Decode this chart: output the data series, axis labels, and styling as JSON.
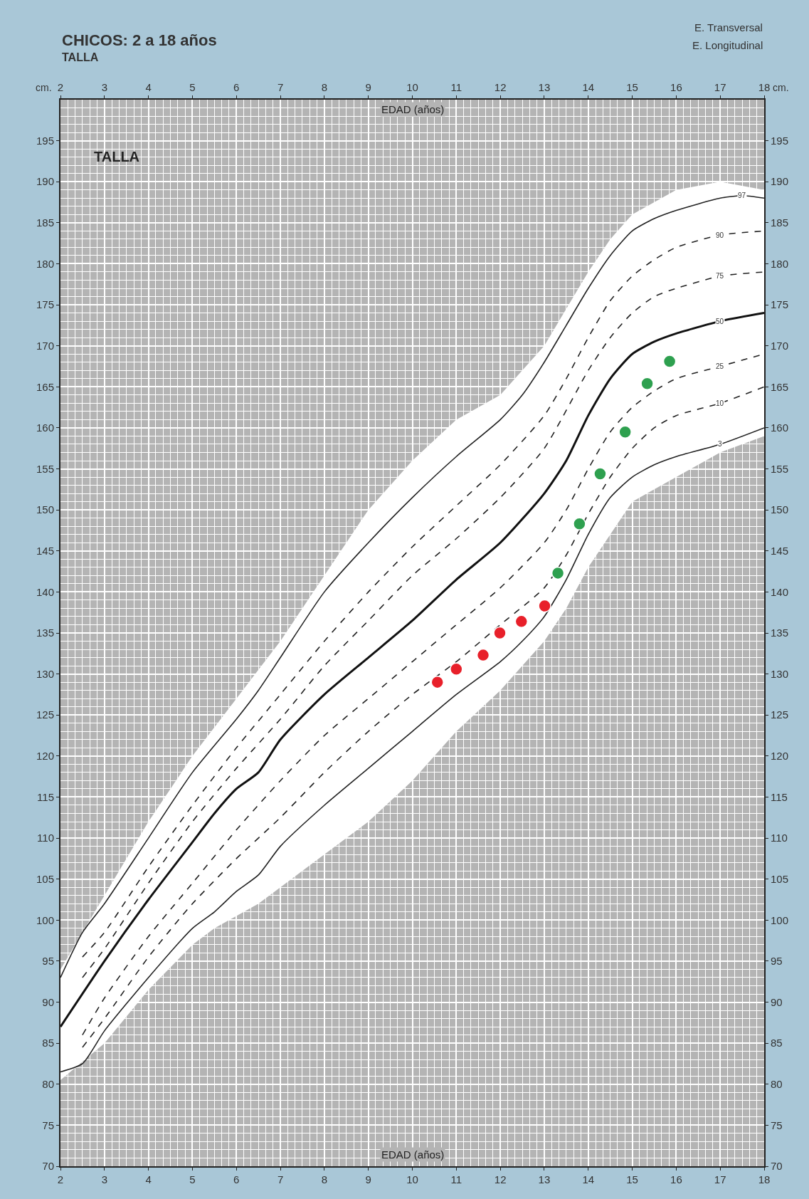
{
  "chart_data": {
    "type": "line",
    "title": "CHICOS: 2 a 18 años",
    "subtitle": "TALLA",
    "xlabel": "EDAD (años)",
    "x2label": "EDAD (años)",
    "ylabel": "cm.",
    "y2label": "cm.",
    "annotations": [
      "TALLA",
      "E. Transversal",
      "E. Longitudinal"
    ],
    "xlim": [
      2,
      18
    ],
    "xticks": [
      2,
      3,
      4,
      5,
      6,
      7,
      8,
      9,
      10,
      11,
      12,
      13,
      14,
      15,
      16,
      17,
      18
    ],
    "x2lim": [
      2,
      18
    ],
    "x2ticks": [
      2,
      3,
      4,
      5,
      6,
      7,
      8,
      9,
      10,
      11,
      12,
      13,
      14,
      15,
      16,
      17,
      18
    ],
    "ylim": [
      70,
      200
    ],
    "yticks": [
      70,
      75,
      80,
      85,
      90,
      95,
      100,
      105,
      110,
      115,
      120,
      125,
      130,
      135,
      140,
      145,
      150,
      155,
      160,
      165,
      170,
      175,
      180,
      185,
      190,
      195
    ],
    "y2lim": [
      70,
      200
    ],
    "y2ticks": [
      70,
      75,
      80,
      85,
      90,
      95,
      100,
      105,
      110,
      115,
      120,
      125,
      130,
      135,
      140,
      145,
      150,
      155,
      160,
      165,
      170,
      175,
      180,
      185,
      190,
      195
    ],
    "grid": true,
    "series": [
      {
        "name": "97",
        "color": "#222222",
        "line_style": "solid",
        "x": [
          2,
          2.5,
          3,
          4,
          5,
          6,
          6.5,
          7,
          8,
          9,
          10,
          11,
          12,
          12.5,
          13,
          13.5,
          14,
          14.5,
          15,
          15.5,
          16,
          17,
          17.5,
          18
        ],
        "values": [
          93,
          98.5,
          102,
          110,
          118,
          124.5,
          128,
          132,
          140,
          146,
          151.5,
          156.5,
          161,
          164,
          168,
          172.5,
          177,
          181,
          184,
          185.5,
          186.5,
          188,
          188.3,
          188
        ]
      },
      {
        "name": "90",
        "color": "#222222",
        "line_style": "dashed",
        "x": [
          2.5,
          3,
          4,
          5,
          6,
          7,
          8,
          9,
          10,
          11,
          12,
          13,
          13.5,
          14,
          14.5,
          15,
          15.5,
          16,
          17,
          18
        ],
        "values": [
          95.5,
          98.5,
          106.5,
          114,
          121,
          127.5,
          134,
          140,
          145.5,
          150.5,
          155.5,
          161.5,
          166,
          171,
          175.5,
          178.5,
          180.5,
          182,
          183.5,
          184
        ]
      },
      {
        "name": "75",
        "color": "#222222",
        "line_style": "dashed",
        "x": [
          2.5,
          3,
          4,
          5,
          6,
          7,
          8,
          9,
          10,
          11,
          12,
          13,
          14,
          14.5,
          15,
          15.5,
          16,
          17,
          18
        ],
        "values": [
          93,
          96.5,
          104.5,
          112,
          118.5,
          124.5,
          131,
          136.5,
          142,
          146.5,
          151.5,
          157.5,
          167,
          171,
          174,
          176,
          177,
          178.5,
          179
        ]
      },
      {
        "name": "50",
        "color": "#111111",
        "line_style": "solid",
        "x": [
          2,
          3,
          4,
          5,
          5.5,
          6,
          6.5,
          7,
          8,
          9,
          10,
          11,
          12,
          13,
          13.5,
          14,
          14.5,
          15,
          15.5,
          16,
          17,
          18
        ],
        "values": [
          87,
          95,
          102.5,
          109.5,
          113,
          116,
          118,
          122,
          127.5,
          132,
          136.5,
          141.5,
          146,
          152,
          156,
          161.5,
          166,
          169,
          170.5,
          171.5,
          173,
          174
        ],
        "lower": [
          80.5,
          85,
          91.5,
          97,
          99,
          100.5,
          102,
          104,
          108,
          112,
          117,
          123,
          128,
          134,
          138,
          143,
          147,
          151,
          152.5,
          154,
          157,
          159
        ],
        "upper": [
          94,
          103,
          112,
          120,
          123.5,
          127,
          130.5,
          134,
          142,
          150,
          156,
          161,
          164,
          170,
          174.5,
          179,
          183,
          186,
          187.5,
          189,
          190,
          189
        ]
      },
      {
        "name": "25",
        "color": "#222222",
        "line_style": "dashed",
        "x": [
          2.5,
          3,
          4,
          5,
          6,
          7,
          8,
          9,
          10,
          11,
          12,
          13,
          13.5,
          14,
          14.5,
          15,
          15.5,
          16,
          17,
          18
        ],
        "values": [
          86,
          90.5,
          98,
          104.5,
          111,
          117,
          122.5,
          127,
          131.5,
          136,
          140.5,
          146,
          150,
          155,
          159.5,
          162.5,
          164.5,
          166,
          167.5,
          169
        ]
      },
      {
        "name": "10",
        "color": "#222222",
        "line_style": "dashed",
        "x": [
          2.5,
          3,
          4,
          5,
          6,
          7,
          8,
          9,
          10,
          11,
          12,
          13,
          13.5,
          14,
          14.5,
          15,
          15.5,
          16,
          17,
          18
        ],
        "values": [
          84.5,
          88,
          95.5,
          102,
          107.5,
          112.5,
          118,
          123,
          127.5,
          131.5,
          136,
          140.5,
          144.5,
          149.5,
          154,
          157.5,
          160,
          161.5,
          163,
          165
        ]
      },
      {
        "name": "3",
        "color": "#222222",
        "line_style": "solid",
        "x": [
          2,
          2.5,
          3,
          4,
          5,
          5.5,
          6,
          6.5,
          7,
          8,
          9,
          10,
          11,
          12,
          12.5,
          13,
          13.5,
          14,
          14.5,
          15,
          15.5,
          16,
          17,
          18
        ],
        "values": [
          81.5,
          82.5,
          86.5,
          93,
          99,
          101,
          103.5,
          105.5,
          109,
          114,
          118.5,
          123,
          127.5,
          131.5,
          134,
          137,
          141.5,
          147,
          151.5,
          154,
          155.5,
          156.5,
          158,
          160
        ]
      },
      {
        "type": "scatter",
        "color": "#e8202a",
        "marker": "circle",
        "x": [
          10.57,
          11.0,
          11.61,
          11.99,
          12.48,
          13.01
        ],
        "values": [
          129.0,
          130.6,
          132.3,
          135.0,
          136.4,
          138.3
        ]
      },
      {
        "type": "scatter",
        "color": "#2ea04f",
        "marker": "circle",
        "x": [
          13.31,
          13.8,
          14.27,
          14.84,
          15.34,
          15.85
        ],
        "values": [
          142.3,
          148.3,
          154.4,
          159.5,
          165.4,
          168.1
        ]
      }
    ]
  }
}
